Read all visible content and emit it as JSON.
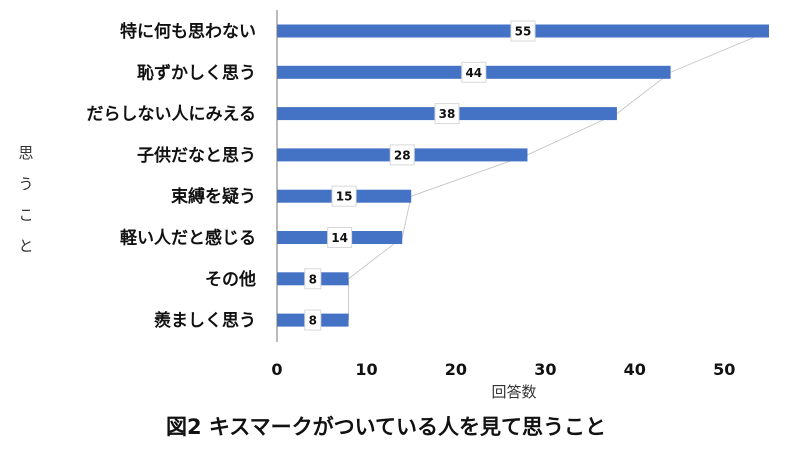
{
  "chart_data": {
    "type": "bar",
    "orientation": "horizontal",
    "title": "図2 キスマークがついている人を見て思うこと",
    "xlabel": "回答数",
    "ylabel": "思うこと",
    "categories": [
      "特に何も思わない",
      "恥ずかしく思う",
      "だらしない人にみえる",
      "子供だなと思う",
      "束縛を疑う",
      "軽い人だと感じる",
      "その他",
      "羨ましく思う"
    ],
    "values": [
      55,
      44,
      38,
      28,
      15,
      14,
      8,
      8
    ],
    "xlim": [
      0,
      55
    ],
    "xticks": [
      0,
      10,
      20,
      30,
      40,
      50
    ],
    "grid": false,
    "legend": "none",
    "bar_color": "#4472c4"
  }
}
